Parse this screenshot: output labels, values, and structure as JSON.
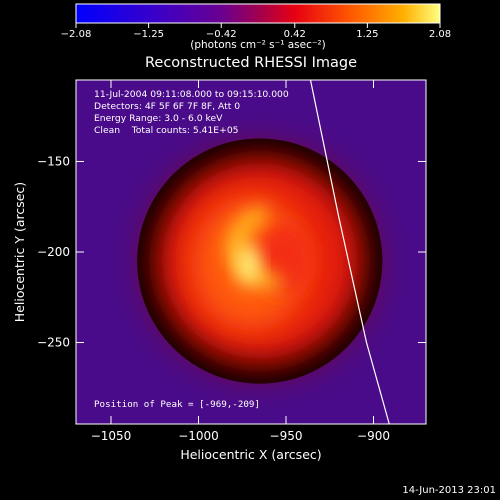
{
  "chart_data": {
    "type": "heatmap",
    "title": "Reconstructed RHESSI Image",
    "xlabel": "Heliocentric X (arcsec)",
    "ylabel": "Heliocentric Y (arcsec)",
    "xlim": [
      -1070,
      -870
    ],
    "ylim": [
      -295,
      -105
    ],
    "xticks": [
      -1050,
      -1000,
      -950,
      -900
    ],
    "xtick_labels": [
      "−1050",
      "−1000",
      "−950",
      "−900"
    ],
    "yticks": [
      -150,
      -200,
      -250
    ],
    "ytick_labels": [
      "−150",
      "−200",
      "−250"
    ],
    "colorbar": {
      "min": -2.08,
      "max": 2.08,
      "ticks": [
        -2.08,
        -1.25,
        -0.42,
        0.42,
        1.25,
        2.08
      ],
      "tick_labels": [
        "−2.08",
        "−1.25",
        "−0.42",
        "0.42",
        "1.25",
        "2.08"
      ],
      "units_label": "(photons cm⁻² s⁻¹ asec⁻²)"
    },
    "annotations": [
      "11-Jul-2004 09:11:08.000 to 09:15:10.000",
      "Detectors: 4F 5F 6F 7F 8F, Att 0",
      "Energy Range: 3.0 - 6.0 keV",
      "Clean    Total counts: 5.41E+05"
    ],
    "peak_label": "Position of Peak = [-969,-209]",
    "peak": [
      -969,
      -209
    ],
    "source": {
      "center": [
        -965,
        -205
      ],
      "radius": 62
    },
    "limb": [
      [
        -936,
        -105
      ],
      [
        -920,
        -180
      ],
      [
        -904,
        -250
      ],
      [
        -891,
        -295
      ]
    ]
  },
  "footer": {
    "timestamp": "14-Jun-2013 23:01"
  },
  "colors": {
    "background": "#000000",
    "limb": "#ffffff",
    "frame": "#ffffff"
  }
}
